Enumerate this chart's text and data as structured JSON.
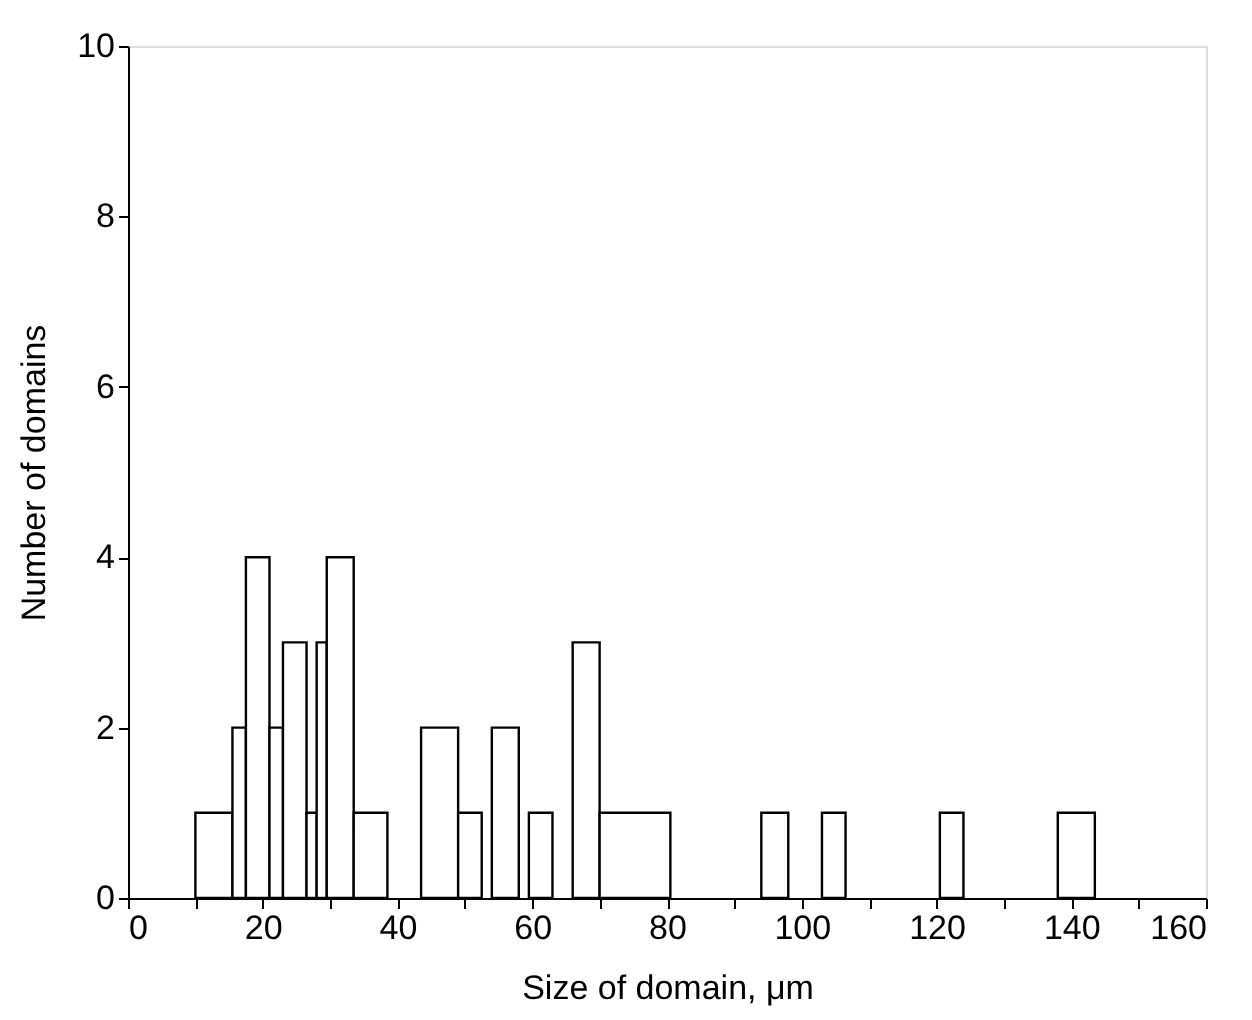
{
  "chart_data": {
    "type": "histogram",
    "xlabel": "Size of domain, μm",
    "ylabel": "Number of domains",
    "bins": [
      10,
      15.5,
      17.5,
      21,
      23,
      26.5,
      28,
      29.5,
      33.5,
      38.5,
      43.5,
      49,
      52.5,
      54,
      58,
      59.5,
      63,
      66,
      70,
      80.5,
      94,
      98,
      103,
      106.5,
      120.5,
      124,
      138,
      143.5
    ],
    "values": [
      1,
      2,
      4,
      2,
      3,
      1,
      3,
      4,
      1,
      0,
      2,
      1,
      0,
      2,
      0,
      1,
      0,
      3,
      1,
      0,
      1,
      0,
      1,
      0,
      1,
      0,
      1
    ],
    "color": "#ffffff",
    "xlim": [
      0,
      160
    ],
    "xticks": [
      0,
      {
        "value": 10,
        "label": null
      },
      20,
      {
        "value": 30,
        "label": null
      },
      40,
      {
        "value": 50,
        "label": null
      },
      60,
      {
        "value": 70,
        "label": null
      },
      80,
      {
        "value": 90,
        "label": null
      },
      100,
      {
        "value": 110,
        "label": null
      },
      120,
      {
        "value": 130,
        "label": null
      },
      140,
      {
        "value": 150,
        "label": null
      },
      160
    ],
    "ylim": [
      0,
      10
    ],
    "yticks": [
      0,
      2,
      4,
      6,
      8,
      10
    ],
    "grid": false
  }
}
